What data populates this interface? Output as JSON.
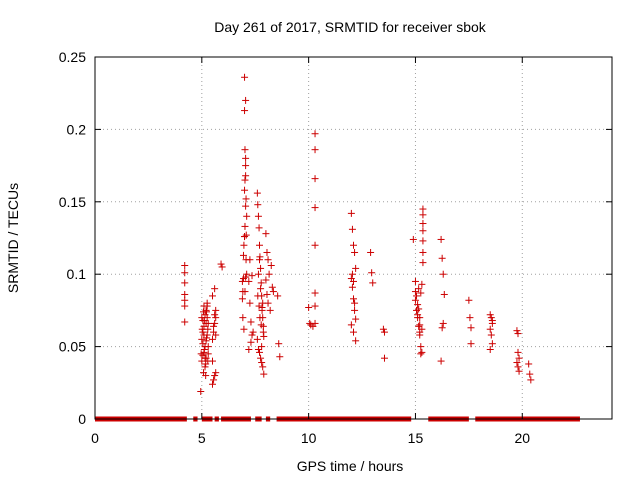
{
  "chart_data": {
    "type": "scatter",
    "title": "Day 261 of 2017, SRMTID for receiver sbok",
    "xlabel": "GPS time / hours",
    "ylabel": "SRMTID / TECUs",
    "xlim": [
      0,
      24.2
    ],
    "ylim": [
      0,
      0.25
    ],
    "xticks": [
      0,
      5,
      10,
      15,
      20
    ],
    "xtick_labels": [
      "0",
      "5",
      "10",
      "15",
      "20"
    ],
    "yticks": [
      0,
      0.05,
      0.1,
      0.15,
      0.2,
      0.25
    ],
    "ytick_labels": [
      "0",
      "0.05",
      "0.1",
      "0.15",
      "0.2",
      "0.25"
    ],
    "grid": true,
    "marker": "+",
    "color": "#cc0000",
    "zero_line_segments": [
      [
        0.0,
        4.3
      ],
      [
        4.6,
        4.8
      ],
      [
        5.0,
        5.5
      ],
      [
        5.6,
        5.8
      ],
      [
        5.9,
        7.3
      ],
      [
        7.5,
        7.8
      ],
      [
        8.0,
        8.2
      ],
      [
        8.5,
        14.8
      ],
      [
        15.6,
        17.5
      ],
      [
        17.8,
        22.7
      ]
    ],
    "series": [
      {
        "name": "SRMTID",
        "x": [
          4.2,
          4.2,
          4.2,
          4.2,
          4.2,
          4.2,
          4.2,
          4.95,
          4.97,
          5.0,
          5.02,
          5.05,
          5.05,
          5.08,
          5.1,
          5.1,
          5.12,
          5.15,
          5.15,
          5.18,
          5.2,
          5.2,
          5.22,
          5.25,
          5.25,
          5.28,
          5.3,
          5.0,
          5.05,
          5.1,
          5.15,
          5.2,
          5.25,
          5.3,
          5.05,
          5.15,
          5.25,
          5.0,
          5.1,
          5.2,
          5.3,
          5.08,
          5.18,
          5.28,
          5.12,
          5.22,
          5.5,
          5.55,
          5.6,
          5.65,
          5.5,
          5.55,
          5.6,
          5.65,
          5.5,
          5.6,
          5.65,
          5.55,
          5.6,
          5.65,
          5.5,
          5.9,
          5.95,
          6.9,
          6.92,
          6.95,
          6.97,
          7.0,
          7.02,
          7.05,
          7.05,
          7.07,
          7.1,
          6.9,
          6.95,
          7.0,
          7.05,
          7.1,
          6.92,
          6.97,
          7.02,
          7.07,
          7.0,
          7.05,
          7.0,
          7.02,
          7.05,
          7.0,
          7.05,
          7.02,
          7.08,
          7.2,
          7.25,
          7.3,
          7.35,
          7.2,
          7.3,
          7.4,
          7.25,
          7.35,
          7.6,
          7.62,
          7.65,
          7.68,
          7.7,
          7.72,
          7.75,
          7.78,
          7.8,
          7.82,
          7.85,
          7.88,
          7.9,
          7.6,
          7.65,
          7.7,
          7.75,
          7.8,
          7.85,
          7.9,
          7.62,
          7.68,
          7.72,
          7.78,
          7.82,
          7.88,
          7.65,
          7.75,
          7.85,
          7.7,
          7.8,
          8.0,
          8.05,
          8.1,
          8.15,
          8.0,
          8.05,
          8.1,
          8.2,
          8.25,
          8.3,
          8.35,
          8.55,
          8.6,
          8.65,
          10.0,
          10.05,
          10.1,
          10.2,
          10.3,
          10.3,
          10.3,
          10.3,
          10.3,
          10.3,
          10.3,
          10.3,
          12.0,
          12.05,
          12.1,
          12.15,
          12.2,
          12.0,
          12.05,
          12.1,
          12.15,
          12.2,
          12.0,
          12.1,
          12.2,
          12.05,
          12.15,
          12.1,
          12.9,
          12.95,
          13.0,
          13.5,
          13.55,
          13.55,
          14.9,
          15.0,
          15.0,
          15.05,
          15.1,
          15.15,
          15.2,
          15.2,
          15.25,
          15.3,
          15.35,
          15.35,
          15.35,
          15.35,
          15.35,
          15.35,
          15.35,
          15.0,
          15.05,
          15.1,
          15.15,
          15.2,
          15.25,
          15.3,
          15.1,
          15.2,
          15.3,
          15.15,
          15.25,
          16.2,
          16.25,
          16.3,
          16.35,
          16.3,
          16.25,
          16.2,
          17.5,
          17.55,
          17.6,
          17.6,
          18.5,
          18.55,
          18.6,
          18.5,
          18.55,
          18.6,
          18.5,
          18.6,
          19.75,
          19.8,
          19.85,
          19.75,
          19.8,
          19.85,
          19.8,
          20.3,
          20.35,
          20.4
        ],
        "y": [
          0.106,
          0.101,
          0.094,
          0.086,
          0.082,
          0.078,
          0.067,
          0.019,
          0.045,
          0.055,
          0.062,
          0.068,
          0.052,
          0.074,
          0.078,
          0.058,
          0.048,
          0.042,
          0.036,
          0.03,
          0.075,
          0.066,
          0.056,
          0.08,
          0.07,
          0.062,
          0.05,
          0.04,
          0.044,
          0.046,
          0.05,
          0.054,
          0.058,
          0.066,
          0.06,
          0.072,
          0.078,
          0.07,
          0.064,
          0.042,
          0.045,
          0.032,
          0.038,
          0.04,
          0.068,
          0.074,
          0.024,
          0.027,
          0.03,
          0.032,
          0.055,
          0.06,
          0.066,
          0.07,
          0.085,
          0.09,
          0.075,
          0.064,
          0.072,
          0.058,
          0.04,
          0.107,
          0.105,
          0.083,
          0.088,
          0.097,
          0.12,
          0.126,
          0.133,
          0.098,
          0.147,
          0.152,
          0.14,
          0.095,
          0.113,
          0.126,
          0.168,
          0.1,
          0.07,
          0.062,
          0.088,
          0.11,
          0.236,
          0.22,
          0.213,
          0.186,
          0.18,
          0.158,
          0.175,
          0.165,
          0.127,
          0.095,
          0.08,
          0.067,
          0.058,
          0.048,
          0.053,
          0.06,
          0.11,
          0.099,
          0.156,
          0.148,
          0.14,
          0.132,
          0.12,
          0.112,
          0.104,
          0.094,
          0.085,
          0.077,
          0.07,
          0.064,
          0.057,
          0.055,
          0.048,
          0.046,
          0.042,
          0.039,
          0.036,
          0.031,
          0.085,
          0.078,
          0.07,
          0.065,
          0.075,
          0.06,
          0.1,
          0.09,
          0.08,
          0.11,
          0.05,
          0.128,
          0.115,
          0.11,
          0.1,
          0.096,
          0.086,
          0.08,
          0.075,
          0.106,
          0.091,
          0.088,
          0.085,
          0.052,
          0.043,
          0.077,
          0.066,
          0.065,
          0.064,
          0.197,
          0.186,
          0.166,
          0.146,
          0.12,
          0.087,
          0.078,
          0.066,
          0.142,
          0.131,
          0.12,
          0.115,
          0.104,
          0.097,
          0.091,
          0.083,
          0.075,
          0.069,
          0.065,
          0.06,
          0.054,
          0.1,
          0.08,
          0.095,
          0.115,
          0.101,
          0.094,
          0.062,
          0.06,
          0.042,
          0.124,
          0.095,
          0.082,
          0.075,
          0.07,
          0.064,
          0.058,
          0.06,
          0.05,
          0.046,
          0.145,
          0.141,
          0.135,
          0.13,
          0.123,
          0.115,
          0.108,
          0.088,
          0.085,
          0.079,
          0.076,
          0.07,
          0.087,
          0.093,
          0.072,
          0.065,
          0.062,
          0.09,
          0.045,
          0.124,
          0.111,
          0.1,
          0.086,
          0.066,
          0.063,
          0.04,
          0.082,
          0.07,
          0.063,
          0.052,
          0.072,
          0.07,
          0.066,
          0.062,
          0.058,
          0.052,
          0.048,
          0.068,
          0.061,
          0.059,
          0.042,
          0.039,
          0.036,
          0.033,
          0.046,
          0.038,
          0.031,
          0.027
        ]
      }
    ]
  }
}
